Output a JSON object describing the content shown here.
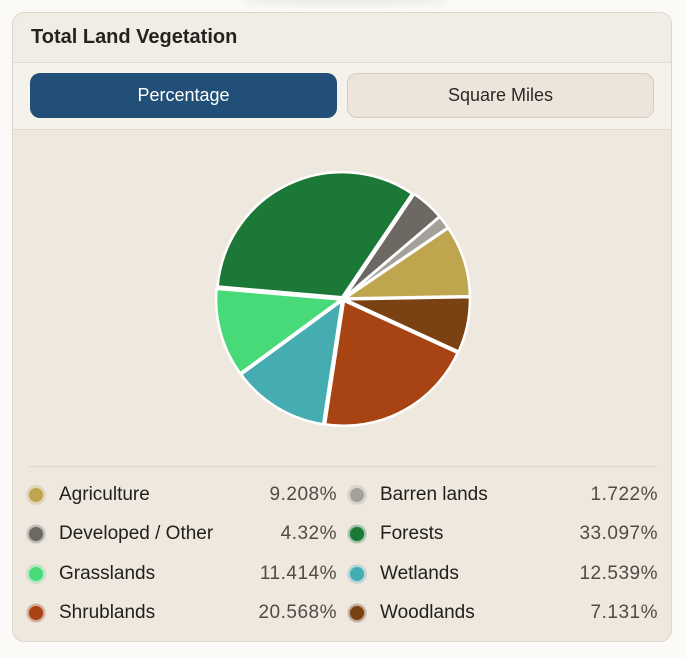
{
  "card": {
    "title": "Total Land Vegetation"
  },
  "tabs": [
    {
      "label": "Percentage",
      "active": true
    },
    {
      "label": "Square Miles",
      "active": false
    }
  ],
  "colors": {
    "accent": "#214f78",
    "Agriculture": "#bea54e",
    "Barren lands": "#a4a19b",
    "Developed / Other": "#6c6862",
    "Forests": "#1b7837",
    "Grasslands": "#48da78",
    "Wetlands": "#45adb2",
    "Shrublands": "#a84413",
    "Woodlands": "#7a4112"
  },
  "chart_data": {
    "type": "pie",
    "title": "",
    "unit": "%",
    "slices": [
      {
        "name": "Agriculture",
        "value": 9.208,
        "label": "9.208%"
      },
      {
        "name": "Woodlands",
        "value": 7.131,
        "label": "7.131%"
      },
      {
        "name": "Shrublands",
        "value": 20.568,
        "label": "20.568%"
      },
      {
        "name": "Wetlands",
        "value": 12.539,
        "label": "12.539%"
      },
      {
        "name": "Grasslands",
        "value": 11.414,
        "label": "11.414%"
      },
      {
        "name": "Forests",
        "value": 33.097,
        "label": "33.097%"
      },
      {
        "name": "Developed / Other",
        "value": 4.32,
        "label": "4.32%"
      },
      {
        "name": "Barren lands",
        "value": 1.722,
        "label": "1.722%"
      }
    ],
    "legend": {
      "placement": "bottom",
      "items": [
        {
          "name": "Agriculture",
          "label": "9.208%"
        },
        {
          "name": "Barren lands",
          "label": "1.722%"
        },
        {
          "name": "Developed / Other",
          "label": "4.32%"
        },
        {
          "name": "Forests",
          "label": "33.097%"
        },
        {
          "name": "Grasslands",
          "label": "11.414%"
        },
        {
          "name": "Wetlands",
          "label": "12.539%"
        },
        {
          "name": "Shrublands",
          "label": "20.568%"
        },
        {
          "name": "Woodlands",
          "label": "7.131%"
        }
      ]
    }
  }
}
